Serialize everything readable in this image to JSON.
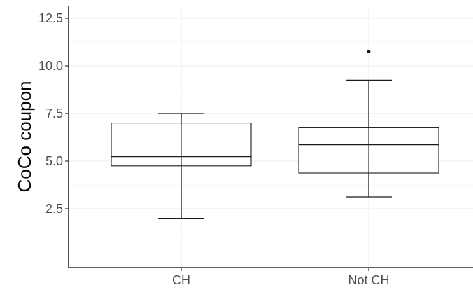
{
  "chart_data": {
    "type": "box",
    "title": "",
    "xlabel": "",
    "ylabel": "CoCo coupon",
    "ylim": [
      0,
      13
    ],
    "yticks": [
      2.5,
      5.0,
      7.5,
      10.0,
      12.5
    ],
    "ytick_labels": [
      "2.5",
      "5.0",
      "7.5",
      "10.0",
      "12.5"
    ],
    "grid": true,
    "categories": [
      "CH",
      "Not CH"
    ],
    "boxes": [
      {
        "category": "CH",
        "whisker_low": 2.0,
        "q1": 4.75,
        "median": 5.25,
        "q3": 7.0,
        "whisker_high": 7.5,
        "outliers": []
      },
      {
        "category": "Not CH",
        "whisker_low": 3.125,
        "q1": 4.375,
        "median": 5.875,
        "q3": 6.75,
        "whisker_high": 9.25,
        "outliers": [
          10.75
        ]
      }
    ]
  }
}
